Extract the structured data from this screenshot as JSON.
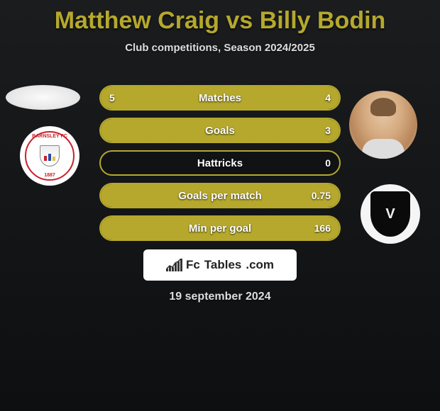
{
  "title": "Matthew Craig vs Billy Bodin",
  "subtitle": "Club competitions, Season 2024/2025",
  "accent_color": "#b5a82d",
  "background_from": "#1a1c1e",
  "background_to": "#0d0f10",
  "title_color": "#b5a82d",
  "title_fontsize": 34,
  "subtitle_fontsize": 15,
  "stats": [
    {
      "label": "Matches",
      "left_val": "5",
      "right_val": "4",
      "left_pct": 55,
      "right_pct": 45
    },
    {
      "label": "Goals",
      "left_val": "",
      "right_val": "3",
      "left_pct": 0,
      "right_pct": 100
    },
    {
      "label": "Hattricks",
      "left_val": "",
      "right_val": "0",
      "left_pct": 0,
      "right_pct": 0
    },
    {
      "label": "Goals per match",
      "left_val": "",
      "right_val": "0.75",
      "left_pct": 0,
      "right_pct": 100
    },
    {
      "label": "Min per goal",
      "left_val": "",
      "right_val": "166",
      "left_pct": 0,
      "right_pct": 100
    }
  ],
  "club_left": {
    "top_text": "BARNSLEY FC",
    "year": "1887"
  },
  "club_right": {
    "letters": "V"
  },
  "footer": {
    "brand1": "Fc",
    "brand2": "Tables",
    "brand3": ".com"
  },
  "date": "19 september 2024",
  "mini_chart_bars": [
    4,
    8,
    6,
    12,
    14,
    18
  ]
}
